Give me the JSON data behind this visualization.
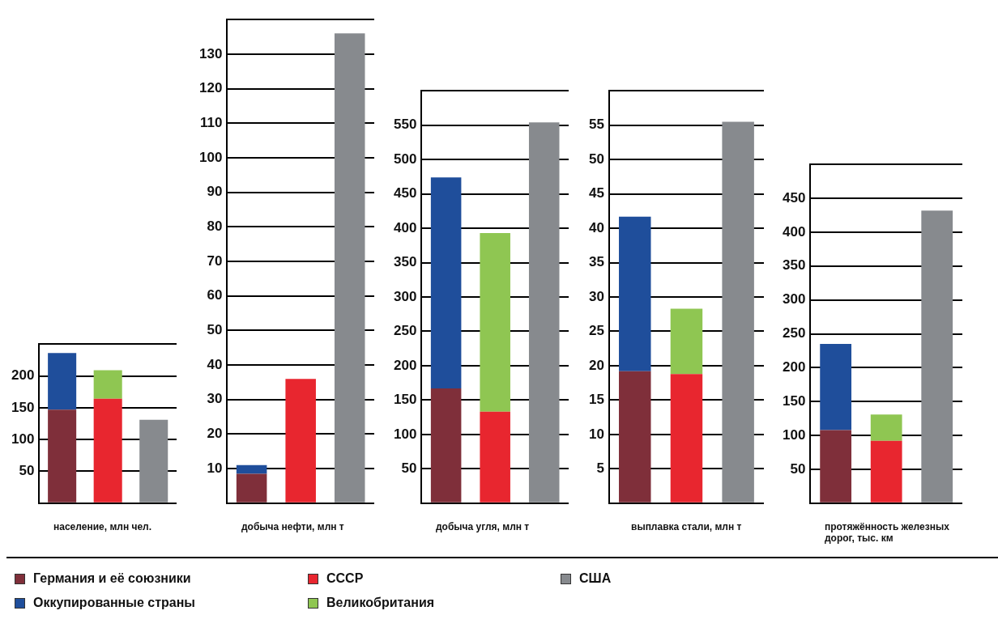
{
  "chart_data": [
    {
      "type": "bar",
      "xlabel": "население, млн  чел.",
      "categories": [
        null,
        null,
        null
      ],
      "stacked": true,
      "grid": "y",
      "legend": "bottom",
      "ylim": [
        0,
        250
      ],
      "yticks": [
        {
          "value": 0,
          "label": null
        },
        50,
        100,
        150,
        200,
        {
          "value": 250,
          "label": null
        }
      ],
      "series": [
        {
          "name": "Германия и её союзники",
          "color": "#7f2f3a",
          "values": [
            147,
            null,
            null
          ]
        },
        {
          "name": "СССР",
          "color": "#e8262f",
          "values": [
            null,
            164,
            null
          ]
        },
        {
          "name": "США",
          "color": "#878a8e",
          "values": [
            null,
            null,
            131
          ]
        },
        {
          "name": "Оккупированные страны",
          "color": "#1f4e9b",
          "values": [
            89,
            null,
            null
          ]
        },
        {
          "name": "Великобритания",
          "color": "#8fc652",
          "values": [
            null,
            45,
            null
          ]
        }
      ]
    },
    {
      "type": "bar",
      "xlabel": "добыча нефти, млн  т",
      "categories": [
        null,
        null,
        null
      ],
      "stacked": true,
      "grid": "y",
      "ylim": [
        0,
        140
      ],
      "yticks": [
        {
          "value": 0,
          "label": null
        },
        10,
        20,
        30,
        40,
        50,
        60,
        70,
        80,
        90,
        100,
        110,
        120,
        130,
        {
          "value": 140,
          "label": null
        }
      ],
      "series": [
        {
          "color": "#7f2f3a",
          "values": [
            8.5,
            null,
            null
          ]
        },
        {
          "color": "#e8262f",
          "values": [
            null,
            36,
            null
          ]
        },
        {
          "color": "#878a8e",
          "values": [
            null,
            null,
            136
          ]
        },
        {
          "color": "#1f4e9b",
          "values": [
            2.5,
            null,
            null
          ]
        },
        {
          "color": "#8fc652",
          "values": [
            null,
            null,
            null
          ]
        }
      ]
    },
    {
      "type": "bar",
      "xlabel": "добыча угля, млн  т",
      "categories": [
        null,
        null,
        null
      ],
      "stacked": true,
      "grid": "y",
      "ylim": [
        0,
        600
      ],
      "yticks": [
        {
          "value": 0,
          "label": null
        },
        50,
        100,
        150,
        200,
        250,
        300,
        350,
        400,
        450,
        500,
        550,
        {
          "value": 600,
          "label": null
        }
      ],
      "series": [
        {
          "color": "#7f2f3a",
          "values": [
            167,
            null,
            null
          ]
        },
        {
          "color": "#e8262f",
          "values": [
            null,
            133,
            null
          ]
        },
        {
          "color": "#878a8e",
          "values": [
            null,
            null,
            554
          ]
        },
        {
          "color": "#1f4e9b",
          "values": [
            307,
            null,
            null
          ]
        },
        {
          "color": "#8fc652",
          "values": [
            null,
            260,
            null
          ]
        }
      ]
    },
    {
      "type": "bar",
      "xlabel": "выплавка стали, млн  т",
      "categories": [
        null,
        null,
        null
      ],
      "stacked": true,
      "grid": "y",
      "ylim": [
        0,
        60
      ],
      "yticks": [
        {
          "value": 0,
          "label": null
        },
        5,
        10,
        15,
        20,
        25,
        30,
        35,
        40,
        45,
        50,
        55,
        {
          "value": 60,
          "label": null
        }
      ],
      "series": [
        {
          "color": "#7f2f3a",
          "values": [
            19.2,
            null,
            null
          ]
        },
        {
          "color": "#e8262f",
          "values": [
            null,
            18.8,
            null
          ]
        },
        {
          "color": "#878a8e",
          "values": [
            null,
            null,
            55.5
          ]
        },
        {
          "color": "#1f4e9b",
          "values": [
            22.5,
            null,
            null
          ]
        },
        {
          "color": "#8fc652",
          "values": [
            null,
            9.5,
            null
          ]
        }
      ]
    },
    {
      "type": "bar",
      "xlabel": "протяжённость железных дорог, тыс. км",
      "categories": [
        null,
        null,
        null
      ],
      "stacked": true,
      "grid": "y",
      "ylim": [
        0,
        500
      ],
      "yticks": [
        {
          "value": 0,
          "label": null
        },
        50,
        100,
        150,
        200,
        250,
        300,
        350,
        400,
        450,
        {
          "value": 500,
          "label": null
        }
      ],
      "series": [
        {
          "color": "#7f2f3a",
          "values": [
            108,
            null,
            null
          ]
        },
        {
          "color": "#e8262f",
          "values": [
            null,
            92,
            null
          ]
        },
        {
          "color": "#878a8e",
          "values": [
            null,
            null,
            432
          ]
        },
        {
          "color": "#1f4e9b",
          "values": [
            127,
            null,
            null
          ]
        },
        {
          "color": "#8fc652",
          "values": [
            null,
            39,
            null
          ]
        }
      ]
    }
  ]
}
